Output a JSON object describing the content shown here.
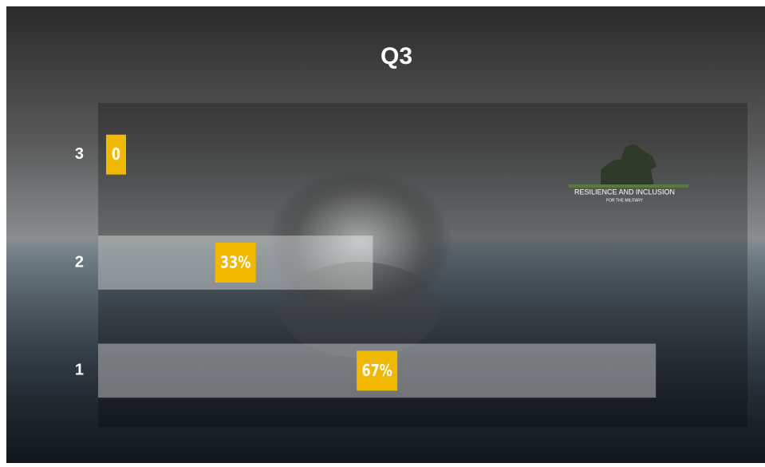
{
  "chart_data": {
    "type": "hbar",
    "title": "Q3",
    "categories": [
      "3",
      "2",
      "1"
    ],
    "values": [
      0,
      33,
      67
    ],
    "value_labels": [
      "0",
      "33%",
      "67%"
    ],
    "xlim": [
      0,
      78
    ],
    "color": "rgba(255,255,255,0.38)",
    "label_color": "#f0b800",
    "annotations": [
      "RESILIENCE AND INCLUSION",
      "FOR THE MILITARY"
    ]
  }
}
